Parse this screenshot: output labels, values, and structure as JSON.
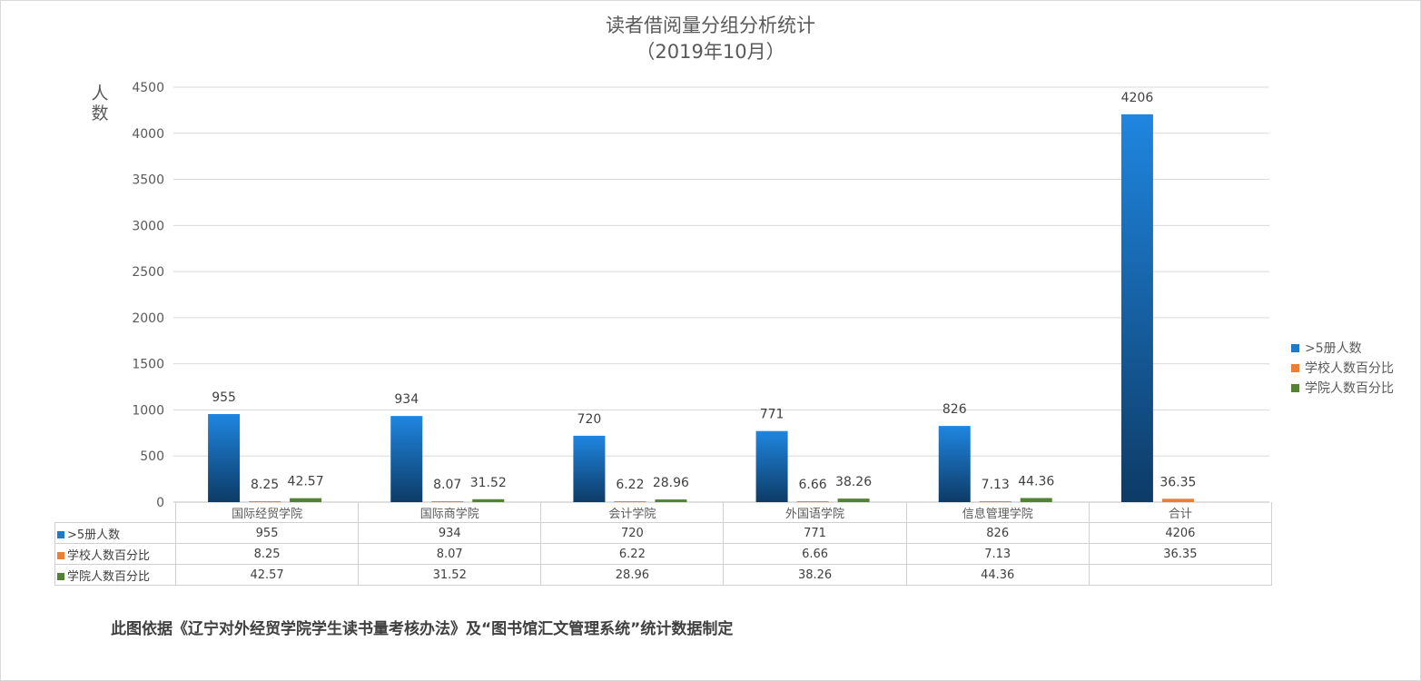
{
  "chart_data": {
    "type": "bar",
    "title": "读者借阅量分组分析统计",
    "subtitle": "（2019年10月）",
    "ylabel": "人数",
    "ylim": [
      0,
      4500
    ],
    "yticks": [
      "0",
      "500",
      "1000",
      "1500",
      "2000",
      "2500",
      "3000",
      "3500",
      "4000",
      "4500"
    ],
    "grid": true,
    "legend_position": "right",
    "categories": [
      "国际经贸学院",
      "国际商学院",
      "会计学院",
      "外国语学院",
      "信息管理学院",
      "合计"
    ],
    "series": [
      {
        "name": ">5册人数",
        "color": "#1f78c8",
        "values": [
          955,
          934,
          720,
          771,
          826,
          4206
        ],
        "labels": [
          "955",
          "934",
          "720",
          "771",
          "826",
          "4206"
        ]
      },
      {
        "name": "学校人数百分比",
        "color": "#ed7d31",
        "values": [
          8.25,
          8.07,
          6.22,
          6.66,
          7.13,
          36.35
        ],
        "labels": [
          "8.25",
          "8.07",
          "6.22",
          "6.66",
          "7.13",
          "36.35"
        ]
      },
      {
        "name": "学院人数百分比",
        "color": "#548235",
        "values": [
          42.57,
          31.52,
          28.96,
          38.26,
          44.36,
          null
        ],
        "labels": [
          "42.57",
          "31.52",
          "28.96",
          "38.26",
          "44.36",
          ""
        ]
      }
    ]
  },
  "footnote": "此图依据《辽宁对外经贸学院学生读书量考核办法》及“图书馆汇文管理系统”统计数据制定"
}
